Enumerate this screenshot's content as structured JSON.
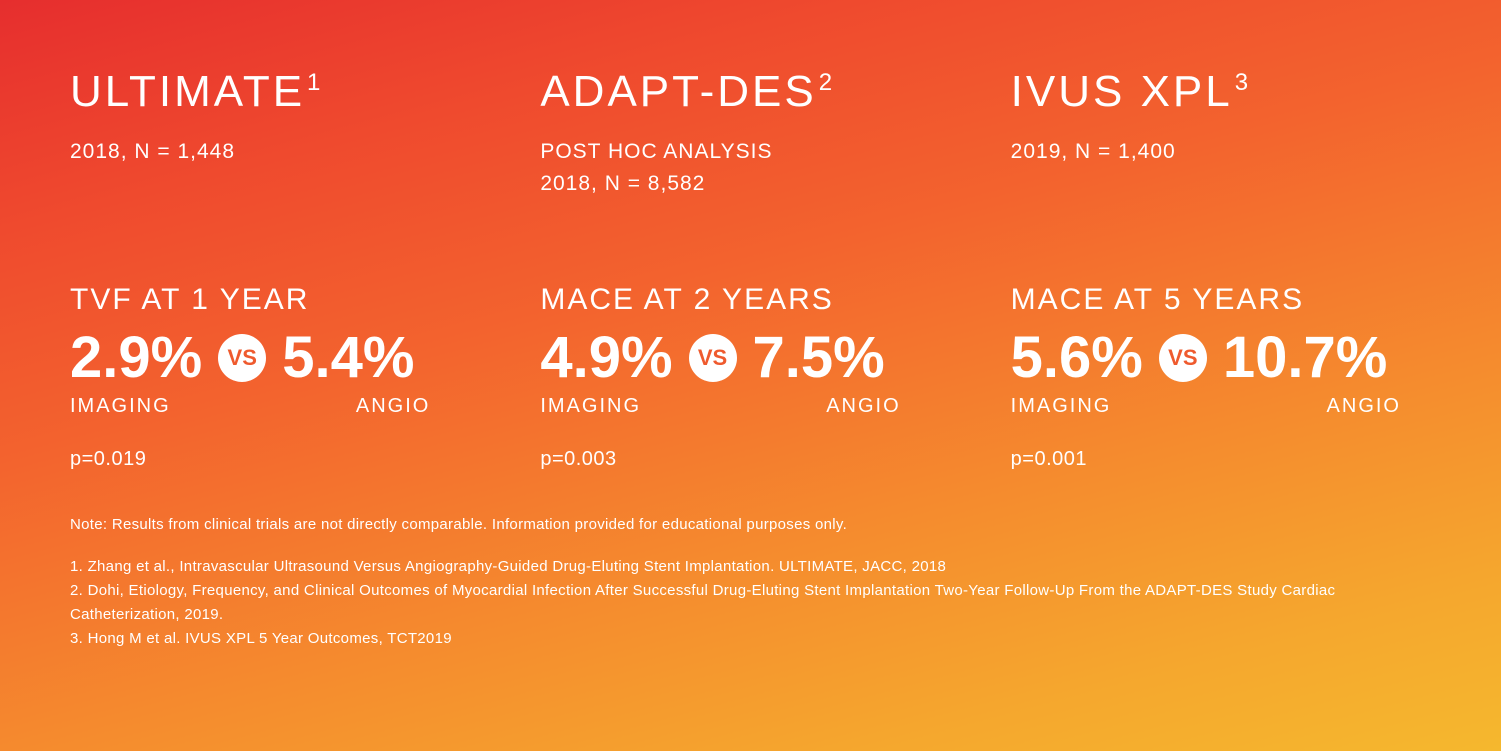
{
  "background": {
    "gradient_stops": [
      "#e62e2e",
      "#ef4a2e",
      "#f3632e",
      "#f58a2e",
      "#f5a72e",
      "#f5b82e"
    ],
    "gradient_angle_deg": 165
  },
  "text_color": "#ffffff",
  "vs_badge": {
    "bg_color": "#ffffff",
    "text_color": "#ef5a2e",
    "label": "VS"
  },
  "studies": [
    {
      "title": "ULTIMATE",
      "sup": "1",
      "meta_line1": "2018, N = 1,448",
      "meta_line2": "",
      "outcome_title": "TVF AT 1 YEAR",
      "imaging_pct": "2.9%",
      "angio_pct": "5.4%",
      "imaging_label": "IMAGING",
      "angio_label": "ANGIO",
      "pval": "p=0.019"
    },
    {
      "title": "ADAPT-DES",
      "sup": "2",
      "meta_line1": "POST HOC ANALYSIS",
      "meta_line2": "2018, N = 8,582",
      "outcome_title": "MACE AT 2 YEARS",
      "imaging_pct": "4.9%",
      "angio_pct": "7.5%",
      "imaging_label": "IMAGING",
      "angio_label": "ANGIO",
      "pval": "p=0.003"
    },
    {
      "title": "IVUS XPL",
      "sup": "3",
      "meta_line1": "2019, N = 1,400",
      "meta_line2": "",
      "outcome_title": "MACE AT 5 YEARS",
      "imaging_pct": "5.6%",
      "angio_pct": "10.7%",
      "imaging_label": "IMAGING",
      "angio_label": "ANGIO",
      "pval": "p=0.001"
    }
  ],
  "footer": {
    "note": "Note: Results from clinical trials are not directly comparable. Information provided for educational purposes only.",
    "refs": [
      "1. Zhang et al., Intravascular Ultrasound Versus Angiography-Guided Drug-Eluting Stent Implantation. ULTIMATE, JACC, 2018",
      "2. Dohi, Etiology, Frequency, and Clinical Outcomes of Myocardial Infection After Successful Drug-Eluting Stent Implantation Two-Year Follow-Up From the ADAPT-DES Study Cardiac Catheterization, 2019.",
      "3. Hong M et al. IVUS XPL 5 Year Outcomes, TCT2019"
    ]
  },
  "typography": {
    "title_fontsize": 44,
    "title_letter_spacing": 3,
    "meta_fontsize": 21,
    "outcome_title_fontsize": 30,
    "pct_fontsize": 58,
    "label_fontsize": 20,
    "pval_fontsize": 20,
    "footer_fontsize": 15
  }
}
